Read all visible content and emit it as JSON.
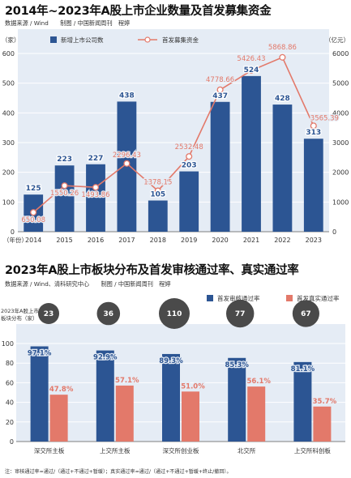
{
  "chart1": {
    "title": "2014年~2023年A股上市企业数量及首发募集资金",
    "source": "数据来源 / Wind　　制图 / 中国新闻周刊　程婷",
    "left_unit": "（家）",
    "right_unit": "（亿元）",
    "x_axis_label": "（年份）",
    "legend_bar": "新增上市公司数",
    "legend_line": "首发募集资金",
    "colors": {
      "bar": "#2c5593",
      "line": "#e3796a",
      "panel": "#e5ecf5"
    }
  },
  "chart2": {
    "title": "2023年A股上市板块分布及首发审核通过率、真实通过率",
    "source": "数据来源 / Wind、清科研究中心　　制图 / 中国新闻周刊　程婷",
    "legend_a": "首发审核通过率",
    "legend_b": "首发真实通过率",
    "count_label_line1": "2023年A股上市",
    "count_label_line2": "板块分布（家）",
    "colors": {
      "a": "#2c5593",
      "b": "#e3796a",
      "panel": "#e5ecf5",
      "bubble": "#4a4a4a"
    }
  },
  "note": "注：审核通过率=通过/（通过+不通过+暂缓）；真实通过率=通过/（通过+不通过+暂缓+终止/撤回）。",
  "chart_data": [
    {
      "type": "bar",
      "title": "2014年~2023年A股上市企业数量及首发募集资金",
      "categories": [
        "2014",
        "2015",
        "2016",
        "2017",
        "2018",
        "2019",
        "2020",
        "2021",
        "2022",
        "2023"
      ],
      "series": [
        {
          "name": "新增上市公司数",
          "type": "bar",
          "axis": "left",
          "values": [
            125,
            223,
            227,
            438,
            105,
            203,
            437,
            524,
            428,
            313
          ],
          "labels": [
            "125",
            "223",
            "227",
            "438",
            "105",
            "203",
            "437",
            "524",
            "428",
            "313"
          ]
        },
        {
          "name": "首发募集资金",
          "type": "line",
          "axis": "right",
          "values": [
            650.08,
            1550.26,
            1493.86,
            2296.43,
            1378.15,
            2532.48,
            4778.66,
            5426.43,
            5868.86,
            3565.39
          ],
          "labels": [
            "650.08",
            "1550.26",
            "1493.86",
            "2296.43",
            "1378.15",
            "2532.48",
            "4778.66",
            "5426.43",
            "5868.86",
            "3565.39"
          ]
        }
      ],
      "left_ticks": [
        0,
        100,
        200,
        300,
        400,
        500,
        600
      ],
      "right_ticks": [
        0,
        1000,
        2000,
        3000,
        4000,
        5000,
        6000
      ],
      "ylim_left": [
        0,
        600
      ],
      "ylim_right": [
        0,
        6000
      ],
      "ylabel_left": "（家）",
      "ylabel_right": "（亿元）",
      "xlabel": "（年份）",
      "grid": true,
      "legend": "top"
    },
    {
      "type": "bar",
      "title": "2023年A股上市板块分布及首发审核通过率、真实通过率",
      "categories": [
        "深交所主板",
        "上交所主板",
        "深交所创业板",
        "北交所",
        "上交所科创板"
      ],
      "series": [
        {
          "name": "首发审核通过率",
          "values": [
            97.1,
            92.9,
            89.3,
            85.3,
            81.1
          ],
          "labels": [
            "97.1%",
            "92.9%",
            "89.3%",
            "85.3%",
            "81.1%"
          ]
        },
        {
          "name": "首发真实通过率",
          "values": [
            47.8,
            57.1,
            51.0,
            56.1,
            35.7
          ],
          "labels": [
            "47.8%",
            "57.1%",
            "51.0%",
            "56.1%",
            "35.7%"
          ]
        }
      ],
      "board_counts": [
        23,
        36,
        110,
        77,
        67
      ],
      "board_count_labels": [
        "23",
        "36",
        "110",
        "77",
        "67"
      ],
      "y_ticks": [
        0,
        20,
        40,
        60,
        80,
        100
      ],
      "ylim": [
        0,
        100
      ],
      "grid": true,
      "legend": "top"
    }
  ]
}
